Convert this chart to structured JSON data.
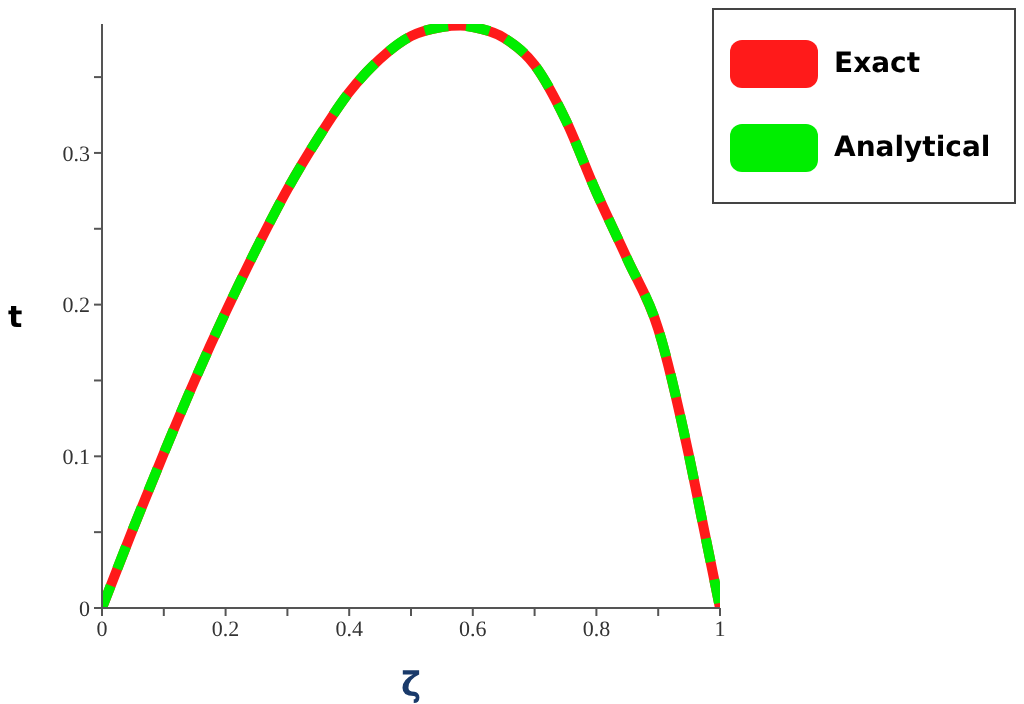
{
  "chart_data": {
    "type": "line",
    "xlabel": "ζ",
    "ylabel": "t",
    "x": [
      0,
      0.05,
      0.1,
      0.15,
      0.2,
      0.25,
      0.3,
      0.35,
      0.4,
      0.45,
      0.5,
      0.55,
      0.58,
      0.6,
      0.65,
      0.7,
      0.75,
      0.8,
      0.85,
      0.9,
      0.95,
      0.97,
      1
    ],
    "series": [
      {
        "name": "Exact",
        "color": "#ff1a1a",
        "line_style": "solid",
        "values": [
          0,
          0.052,
          0.102,
          0.15,
          0.195,
          0.237,
          0.276,
          0.31,
          0.34,
          0.362,
          0.377,
          0.383,
          0.384,
          0.383,
          0.376,
          0.358,
          0.322,
          0.274,
          0.23,
          0.184,
          0.1,
          0.06,
          0
        ]
      },
      {
        "name": "Analytical",
        "color": "#00ee00",
        "line_style": "dashed",
        "values": [
          0,
          0.052,
          0.102,
          0.15,
          0.195,
          0.237,
          0.276,
          0.31,
          0.34,
          0.362,
          0.377,
          0.383,
          0.384,
          0.383,
          0.376,
          0.358,
          0.322,
          0.274,
          0.23,
          0.184,
          0.1,
          0.06,
          0
        ]
      }
    ],
    "xlim": [
      0,
      1
    ],
    "xticks": [
      0,
      {
        "value": 0.1,
        "label": null
      },
      0.2,
      {
        "value": 0.3,
        "label": null
      },
      0.4,
      {
        "value": 0.5,
        "label": null
      },
      0.6,
      {
        "value": 0.7,
        "label": null
      },
      0.8,
      {
        "value": 0.9,
        "label": null
      },
      1
    ],
    "ylim": [
      0,
      0.385
    ],
    "yticks": [
      0,
      {
        "value": 0.05,
        "label": null
      },
      0.1,
      {
        "value": 0.15,
        "label": null
      },
      0.2,
      {
        "value": 0.25,
        "label": null
      },
      0.3,
      {
        "value": 0.35,
        "label": null
      }
    ],
    "grid": false,
    "legend": "top right",
    "marker": "none"
  }
}
